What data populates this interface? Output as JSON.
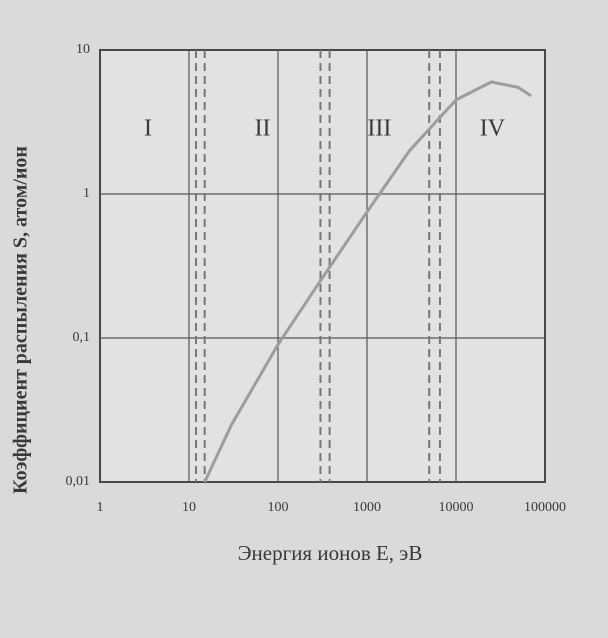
{
  "chart_data": {
    "type": "line",
    "x_label": "Энергия ионов E, эВ",
    "y_label": "Коэффициент распыления S, атом/ион",
    "x": [
      15,
      30,
      100,
      300,
      1000,
      3000,
      10000,
      25000,
      50000,
      70000
    ],
    "values": [
      0.01,
      0.025,
      0.09,
      0.25,
      0.75,
      2,
      4.5,
      6,
      5.5,
      4.8
    ],
    "color": "#a09c9c",
    "xscale": "log",
    "yscale": "log",
    "xlim": [
      1,
      100000
    ],
    "ylim": [
      0.01,
      10
    ],
    "xticks": [
      1,
      10,
      100,
      1000,
      10000,
      100000
    ],
    "yticks": [
      {
        "value": 0.01,
        "label": "0,01"
      },
      {
        "value": 0.1,
        "label": "0,1"
      },
      1,
      10
    ],
    "grid": true,
    "region_boundaries": [
      12,
      15,
      300,
      380,
      5000,
      6600
    ],
    "region_labels": [
      "I",
      "II",
      "III",
      "IV"
    ]
  }
}
